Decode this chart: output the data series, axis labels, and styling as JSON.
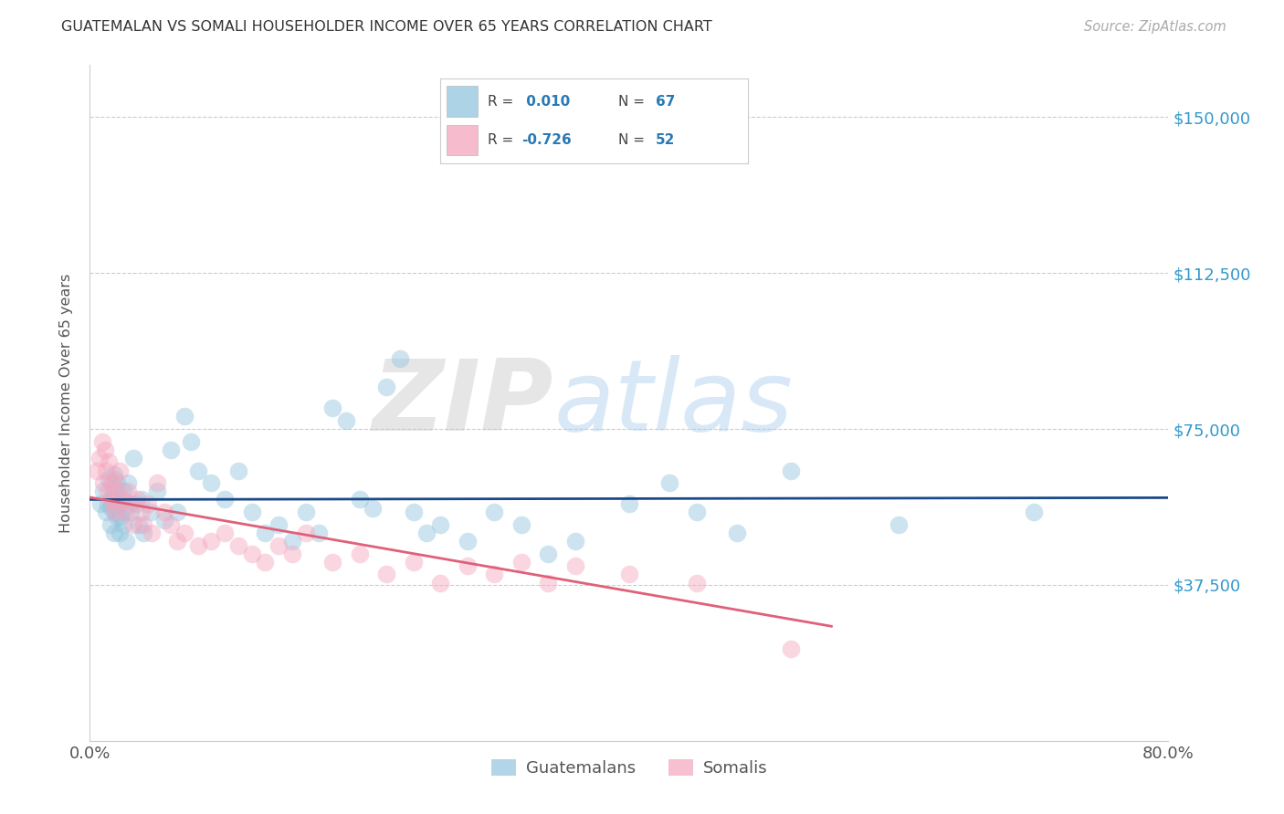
{
  "title": "GUATEMALAN VS SOMALI HOUSEHOLDER INCOME OVER 65 YEARS CORRELATION CHART",
  "source": "Source: ZipAtlas.com",
  "ylabel": "Householder Income Over 65 years",
  "xlim": [
    0.0,
    0.8
  ],
  "ylim": [
    0,
    162500
  ],
  "xticks": [
    0.0,
    0.1,
    0.2,
    0.3,
    0.4,
    0.5,
    0.6,
    0.7,
    0.8
  ],
  "xticklabels": [
    "0.0%",
    "",
    "",
    "",
    "",
    "",
    "",
    "",
    "80.0%"
  ],
  "yticks": [
    0,
    37500,
    75000,
    112500,
    150000
  ],
  "yticklabels": [
    "",
    "$37,500",
    "$75,000",
    "$112,500",
    "$150,000"
  ],
  "legend_labels": [
    "Guatemalans",
    "Somalis"
  ],
  "blue_color": "#92c5de",
  "pink_color": "#f4a6be",
  "blue_line_color": "#1a4a8a",
  "pink_line_color": "#e0607a",
  "R_blue": 0.01,
  "R_pink": -0.726,
  "N_blue": 67,
  "N_somali": 52,
  "watermark_zip": "ZIP",
  "watermark_atlas": "atlas",
  "guatemalan_x": [
    0.008,
    0.01,
    0.012,
    0.013,
    0.014,
    0.015,
    0.015,
    0.016,
    0.017,
    0.018,
    0.018,
    0.019,
    0.02,
    0.02,
    0.021,
    0.022,
    0.023,
    0.024,
    0.025,
    0.025,
    0.026,
    0.027,
    0.028,
    0.03,
    0.032,
    0.034,
    0.036,
    0.038,
    0.04,
    0.045,
    0.05,
    0.055,
    0.06,
    0.065,
    0.07,
    0.075,
    0.08,
    0.09,
    0.1,
    0.11,
    0.12,
    0.13,
    0.14,
    0.15,
    0.16,
    0.17,
    0.18,
    0.19,
    0.2,
    0.21,
    0.22,
    0.23,
    0.24,
    0.25,
    0.26,
    0.28,
    0.3,
    0.32,
    0.34,
    0.36,
    0.4,
    0.43,
    0.45,
    0.48,
    0.52,
    0.6,
    0.7
  ],
  "guatemalan_y": [
    57000,
    60000,
    55000,
    57000,
    63000,
    52000,
    58000,
    56000,
    60000,
    50000,
    64000,
    55000,
    54000,
    62000,
    57000,
    50000,
    54000,
    58000,
    52000,
    60000,
    56000,
    48000,
    62000,
    55000,
    68000,
    57000,
    52000,
    58000,
    50000,
    55000,
    60000,
    53000,
    70000,
    55000,
    78000,
    72000,
    65000,
    62000,
    58000,
    65000,
    55000,
    50000,
    52000,
    48000,
    55000,
    50000,
    80000,
    77000,
    58000,
    56000,
    85000,
    92000,
    55000,
    50000,
    52000,
    48000,
    55000,
    52000,
    45000,
    48000,
    57000,
    62000,
    55000,
    50000,
    65000,
    52000,
    55000
  ],
  "somali_x": [
    0.005,
    0.007,
    0.009,
    0.01,
    0.011,
    0.012,
    0.013,
    0.014,
    0.015,
    0.016,
    0.017,
    0.018,
    0.019,
    0.02,
    0.022,
    0.024,
    0.026,
    0.028,
    0.03,
    0.032,
    0.035,
    0.038,
    0.04,
    0.043,
    0.046,
    0.05,
    0.055,
    0.06,
    0.065,
    0.07,
    0.08,
    0.09,
    0.1,
    0.11,
    0.12,
    0.13,
    0.14,
    0.15,
    0.16,
    0.18,
    0.2,
    0.22,
    0.24,
    0.26,
    0.28,
    0.3,
    0.32,
    0.34,
    0.36,
    0.4,
    0.45,
    0.52
  ],
  "somali_y": [
    65000,
    68000,
    72000,
    62000,
    70000,
    65000,
    60000,
    67000,
    58000,
    62000,
    57000,
    63000,
    55000,
    60000,
    65000,
    58000,
    55000,
    60000,
    57000,
    52000,
    58000,
    55000,
    52000,
    57000,
    50000,
    62000,
    55000,
    52000,
    48000,
    50000,
    47000,
    48000,
    50000,
    47000,
    45000,
    43000,
    47000,
    45000,
    50000,
    43000,
    45000,
    40000,
    43000,
    38000,
    42000,
    40000,
    43000,
    38000,
    42000,
    40000,
    38000,
    22000
  ]
}
